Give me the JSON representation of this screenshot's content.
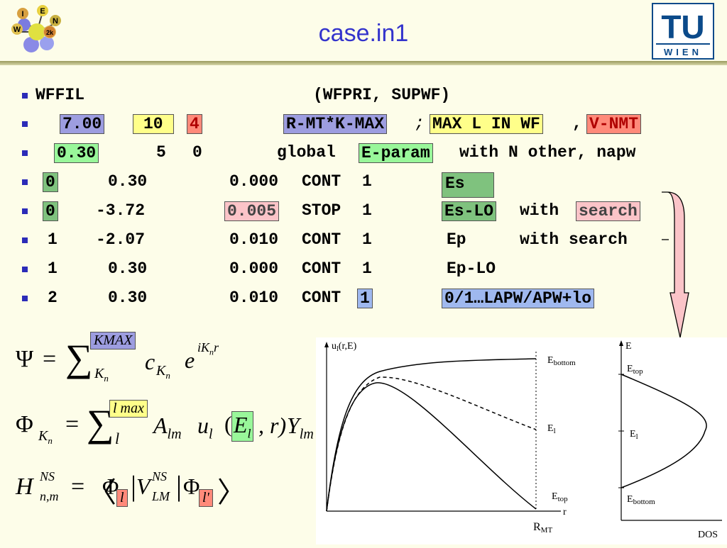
{
  "header": {
    "title": "case.in1"
  },
  "logos": {
    "left_letters": [
      "I",
      "E",
      "W",
      "N",
      "2k"
    ],
    "right_line1": "TU",
    "right_line2": "WIEN"
  },
  "lines": {
    "l0": {
      "c1": "WFFIL",
      "c2": "(WFPRI, SUPWF)"
    },
    "l1": {
      "a": "7.00",
      "b": "10",
      "c": "4",
      "p1": "(",
      "d": "R-MT*K-MAX",
      "sep1": ";",
      "e": "MAX L IN WF",
      "sep2": ",",
      "f": "V-NMT"
    },
    "l2": {
      "a": "0.30",
      "b": "5",
      "c": "0",
      "d": "global",
      "e": "E-param",
      "f": "with N other, napw"
    },
    "l3": {
      "a": "0",
      "b": "0.30",
      "c": "0.000",
      "d": "CONT",
      "e": "1",
      "f": "Es"
    },
    "l4": {
      "a": "0",
      "b": "-3.72",
      "c": "0.005",
      "d": "STOP",
      "e": "1",
      "f": "Es-LO",
      "g": "with",
      "h": "search"
    },
    "l5": {
      "a": "1",
      "b": "-2.07",
      "c": "0.010",
      "d": "CONT",
      "e": "1",
      "f": "Ep",
      "g": "with search"
    },
    "l6": {
      "a": "1",
      "b": "0.30",
      "c": "0.000",
      "d": "CONT",
      "e": "1",
      "f": "Ep-LO"
    },
    "l7": {
      "a": "2",
      "b": "0.30",
      "c": "0.010",
      "d": "CONT",
      "e": "1",
      "f": "0/1…LAPW/APW+lo"
    }
  },
  "formulas": {
    "psi": {
      "lhs": "Ψ",
      "eq": "=",
      "sum": "∑",
      "sup": "KMAX",
      "sub": "K",
      "subsub": "n",
      "c": "c",
      "csub": "K",
      "csubsub": "n",
      "e": "e",
      "esup": "iK",
      "esupsub": "n",
      "esupr": "r"
    },
    "phi": {
      "lhs": "Φ",
      "lhssub": "K",
      "lhssubsub": "n",
      "eq": "=",
      "sum": "∑",
      "sup": "l max",
      "sub": "l",
      "A": "A",
      "Asub": "lm",
      "u": "u",
      "usub": "l",
      "p1": "(",
      "E": "E",
      "Esub": "l",
      "rest": ", r)",
      "Y": "Y",
      "Ysub": "lm"
    },
    "h": {
      "H": "H",
      "Hsup": "NS",
      "Hsub": "n,m",
      "eq": "=",
      "lang": "〈",
      "phi1": "Φ",
      "l1": "l",
      "bar1": "|",
      "V": "V",
      "Vsup": "NS",
      "Vsub": "LM",
      "bar2": "|",
      "phi2": "Φ",
      "l2": "l'",
      "rang": "〉"
    }
  },
  "figure": {
    "left": {
      "ylabel": "u",
      "ylabel_sub": "l",
      "ylabel_rest": "(r,E)",
      "xlabel": "r",
      "rmt": "R",
      "rmt_sub": "MT",
      "e_bottom": "E",
      "e_bottom_sub": "bottom",
      "e_l": "E",
      "e_l_sub": "l",
      "e_top": "E",
      "e_top_sub": "top"
    },
    "right": {
      "ylabel": "E",
      "e_top": "E",
      "e_top_sub": "top",
      "e_l": "E",
      "e_l_sub": "l",
      "e_bottom": "E",
      "e_bottom_sub": "bottom",
      "xlabel": "DOS"
    }
  }
}
